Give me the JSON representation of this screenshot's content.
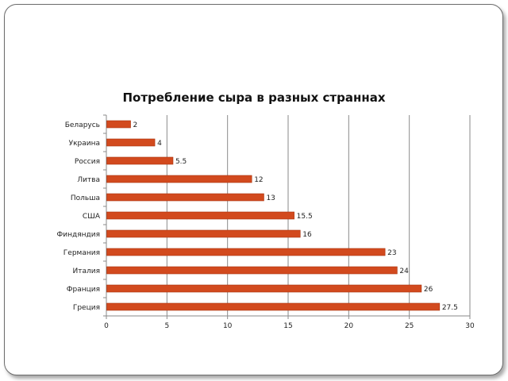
{
  "chart_data": {
    "type": "bar",
    "orientation": "horizontal",
    "title": "Потребление сыра в разных страннах",
    "categories": [
      "Беларусь",
      "Украина",
      "Россия",
      "Литва",
      "Польша",
      "США",
      "Финдяндия",
      "Германия",
      "Италия",
      "Франция",
      "Греция"
    ],
    "values": [
      2,
      4,
      5.5,
      12,
      13,
      15.5,
      16,
      23,
      24,
      26,
      27.5
    ],
    "value_labels": [
      "2",
      "4",
      "5.5",
      "12",
      "13",
      "15.5",
      "16",
      "23",
      "24",
      "26",
      "27.5"
    ],
    "xlim": [
      0,
      30
    ],
    "x_ticks": [
      0,
      5,
      10,
      15,
      20,
      25,
      30
    ],
    "x_tick_labels": [
      "0",
      "5",
      "10",
      "15",
      "20",
      "25",
      "30"
    ],
    "grid": true,
    "legend": "none",
    "bar_color": "#d24a1e",
    "bar_edge_color": "#a8350f"
  }
}
